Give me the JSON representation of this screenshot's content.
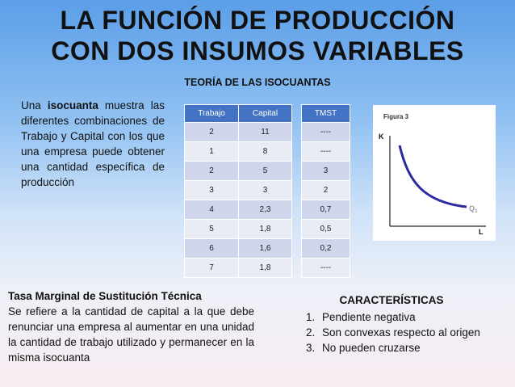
{
  "title_line1": "LA FUNCIÓN DE PRODUCCIÓN",
  "title_line2": "CON DOS INSUMOS VARIABLES",
  "subtitle": "TEORÍA DE LAS ISOCUANTAS",
  "intro": {
    "pre": "Una ",
    "bold": "isocuanta",
    "post": " muestra las diferentes combinaciones de Trabajo y Capital con los que una empresa puede obtener una cantidad específica de producción"
  },
  "table_main": {
    "headers": [
      "Trabajo",
      "Capital"
    ],
    "rows": [
      [
        "2",
        "11"
      ],
      [
        "1",
        "8"
      ],
      [
        "2",
        "5"
      ],
      [
        "3",
        "3"
      ],
      [
        "4",
        "2,3"
      ],
      [
        "5",
        "1,8"
      ],
      [
        "6",
        "1,6"
      ],
      [
        "7",
        "1,8"
      ]
    ]
  },
  "table_tmst": {
    "header": "TMST",
    "rows": [
      "----",
      "----",
      "3",
      "2",
      "0,7",
      "0,5",
      "0,2",
      "----"
    ]
  },
  "figure": {
    "caption": "Figura 3",
    "y_axis": "K",
    "x_axis": "L",
    "curve_label": "Q",
    "curve_sub": "1",
    "curve_color": "#2a2a9e"
  },
  "tmst_block": {
    "heading": "Tasa Marginal de Sustitución Técnica",
    "body": "Se refiere a la cantidad de capital a la que debe renunciar una empresa al aumentar en una unidad la cantidad de trabajo utilizado y permanecer en la misma isocuanta"
  },
  "caracteristicas": {
    "title": "CARACTERÍSTICAS",
    "items": [
      {
        "num": "1.",
        "text": "Pendiente negativa"
      },
      {
        "num": "2.",
        "text": "Son convexas respecto al origen"
      },
      {
        "num": "3.",
        "text": "No pueden cruzarse"
      }
    ]
  }
}
